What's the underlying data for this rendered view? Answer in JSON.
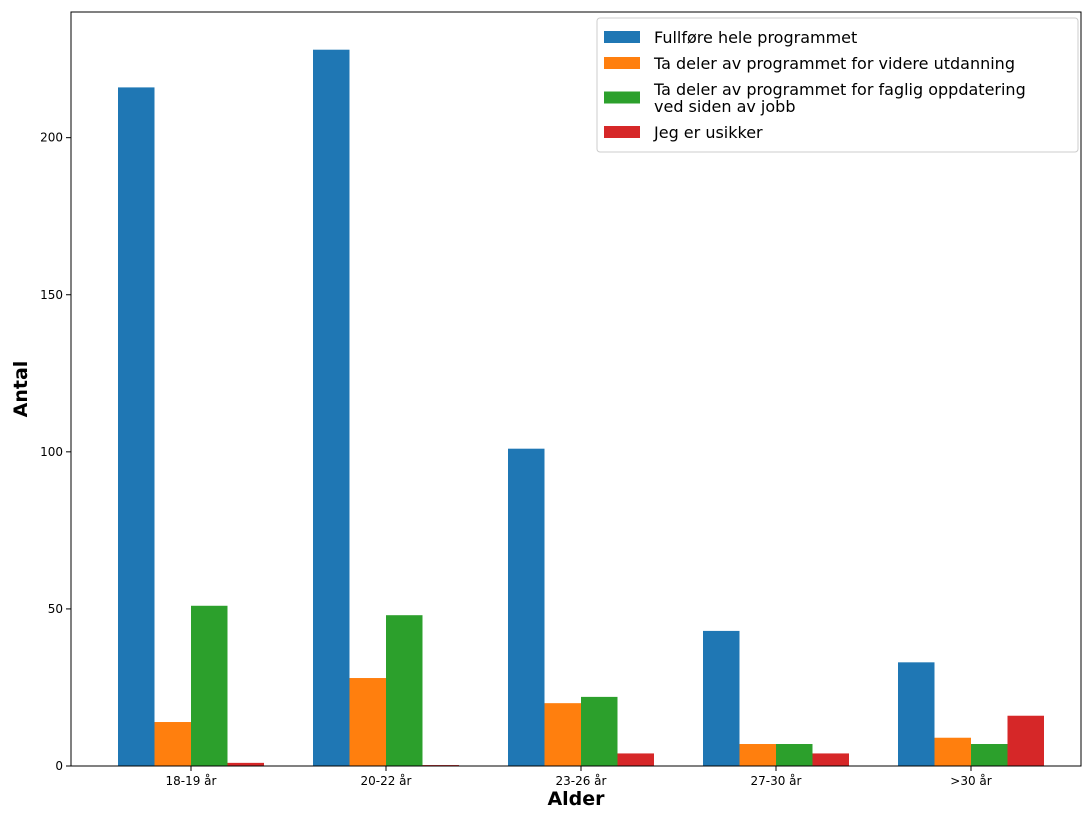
{
  "chart_data": {
    "type": "bar",
    "title": "",
    "xlabel": "Alder",
    "ylabel": "Antal",
    "categories": [
      "18-19 år",
      "20-22 år",
      "23-26 år",
      "27-30 år",
      ">30 år"
    ],
    "series": [
      {
        "name": "Fullføre hele programmet",
        "color": "#1f77b4",
        "values": [
          216,
          228,
          101,
          43,
          33
        ]
      },
      {
        "name": "Ta deler av programmet for videre utdanning",
        "color": "#ff7f0e",
        "values": [
          14,
          28,
          20,
          7,
          9
        ]
      },
      {
        "name": "Ta deler av programmet for faglig oppdatering\nved siden av jobb",
        "color": "#2ca02c",
        "values": [
          51,
          48,
          22,
          7,
          7
        ]
      },
      {
        "name": "Jeg er usikker",
        "color": "#d62728",
        "values": [
          1,
          0.3,
          4,
          4,
          16
        ]
      }
    ],
    "ylim": [
      0,
      240
    ],
    "yticks": [
      0,
      50,
      100,
      150,
      200
    ],
    "legend_position": "top-right",
    "grid": false
  }
}
